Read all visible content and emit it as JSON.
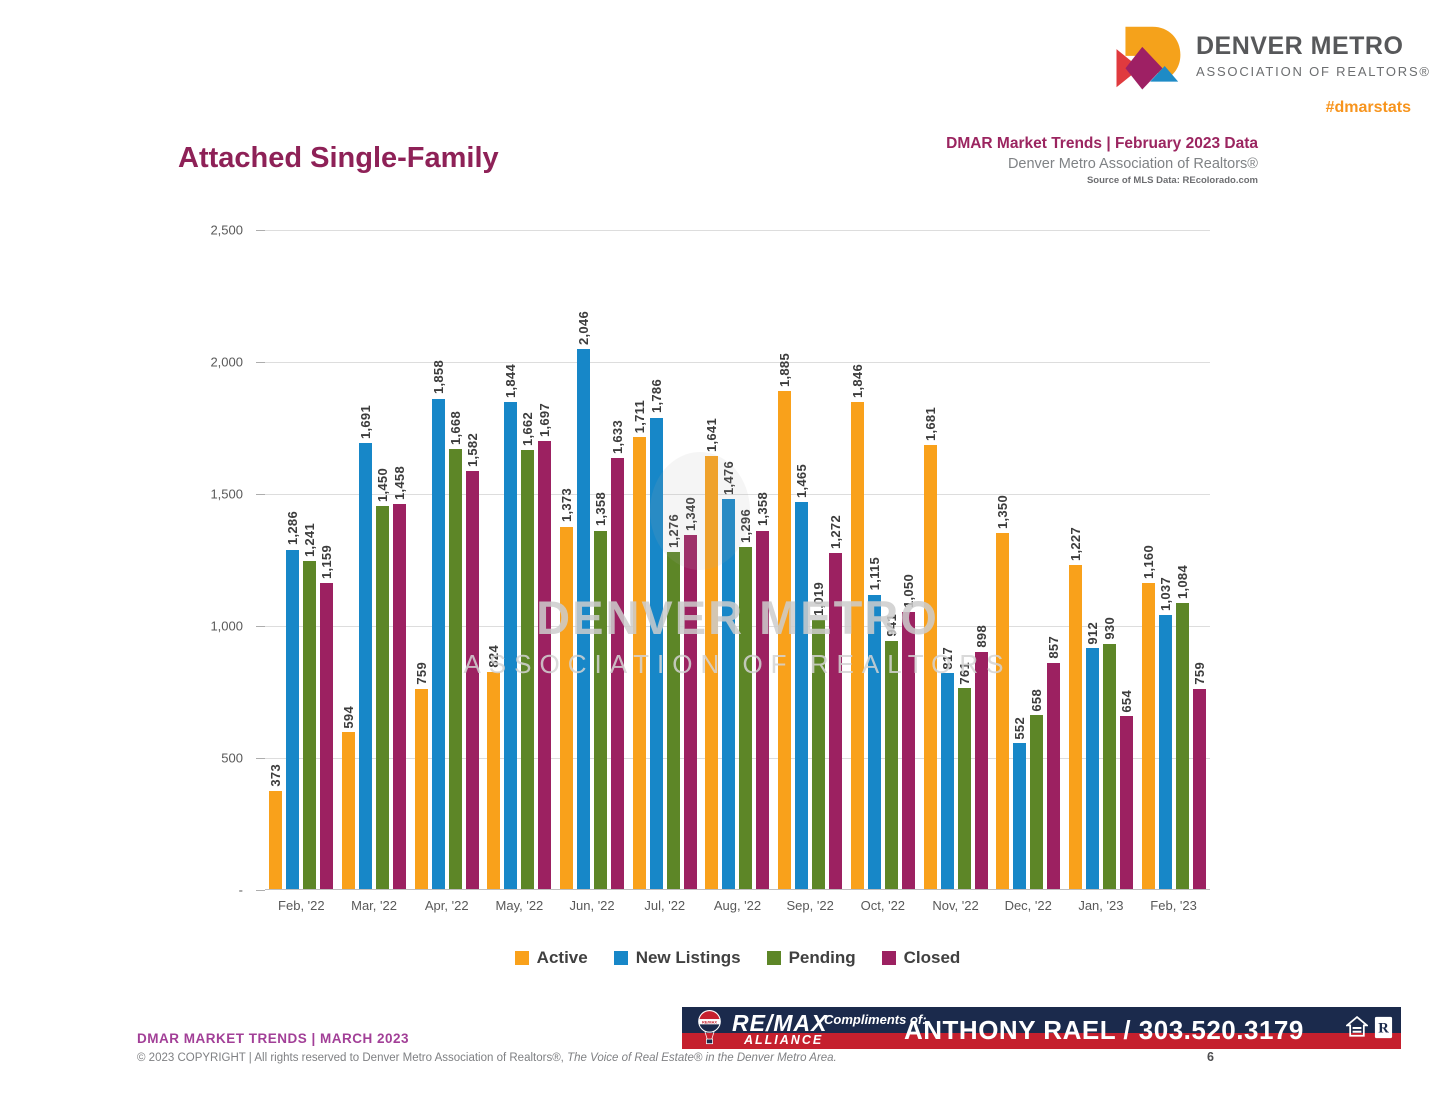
{
  "brand": {
    "name_line1": "DENVER METRO",
    "name_line2": "ASSOCIATION OF REALTORS®",
    "hashtag": "#dmarstats"
  },
  "header": {
    "page_title": "Attached Single-Family",
    "report_title": "DMAR Market Trends | February 2023 Data",
    "report_org": "Denver Metro Association of Realtors®",
    "report_source": "Source of MLS Data: REcolorado.com"
  },
  "watermark": {
    "line1": "DENVER METRO",
    "line2": "ASSOCIATION OF REALTORS"
  },
  "chart_data": {
    "type": "bar",
    "title": "Attached Single-Family",
    "categories": [
      "Feb, '22",
      "Mar, '22",
      "Apr, '22",
      "May, '22",
      "Jun, '22",
      "Jul, '22",
      "Aug, '22",
      "Sep, '22",
      "Oct, '22",
      "Nov, '22",
      "Dec, '22",
      "Jan, '23",
      "Feb, '23"
    ],
    "series": [
      {
        "name": "Active",
        "color": "#F9A11B",
        "values": [
          373,
          594,
          759,
          824,
          1373,
          1711,
          1641,
          1885,
          1846,
          1681,
          1350,
          1227,
          1160
        ]
      },
      {
        "name": "New Listings",
        "color": "#1787C8",
        "values": [
          1286,
          1691,
          1858,
          1844,
          2046,
          1786,
          1476,
          1465,
          1115,
          817,
          552,
          912,
          1037
        ]
      },
      {
        "name": "Pending",
        "color": "#5D8627",
        "values": [
          1241,
          1450,
          1668,
          1662,
          1358,
          1276,
          1296,
          1019,
          941,
          761,
          658,
          930,
          1084
        ]
      },
      {
        "name": "Closed",
        "color": "#9C2161",
        "values": [
          1159,
          1458,
          1582,
          1697,
          1633,
          1340,
          1358,
          1272,
          1050,
          898,
          857,
          654,
          759
        ]
      }
    ],
    "ylim": [
      0,
      2500
    ],
    "ytick_interval": 500,
    "ytick_labels": [
      "-",
      "500",
      "1,000",
      "1,500",
      "2,000",
      "2,500"
    ],
    "grid": true,
    "legend_position": "bottom",
    "value_label_rotation": 90
  },
  "footer": {
    "trends_label": "DMAR MARKET TRENDS | MARCH 2023",
    "copyright_prefix": "© 2023 COPYRIGHT | All rights reserved to Denver Metro Association of Realtors®, ",
    "copyright_italic": "The Voice of Real Estate® in the Denver Metro Area.",
    "page_number": "6"
  },
  "banner": {
    "brand": "RE/MAX",
    "office": "ALLIANCE",
    "compliments_label": "Compliments of:",
    "agent_line": "ANTHONY RAEL / 303.520.3179",
    "navy_color": "#1B2A4C",
    "red_color": "#C5202E"
  }
}
